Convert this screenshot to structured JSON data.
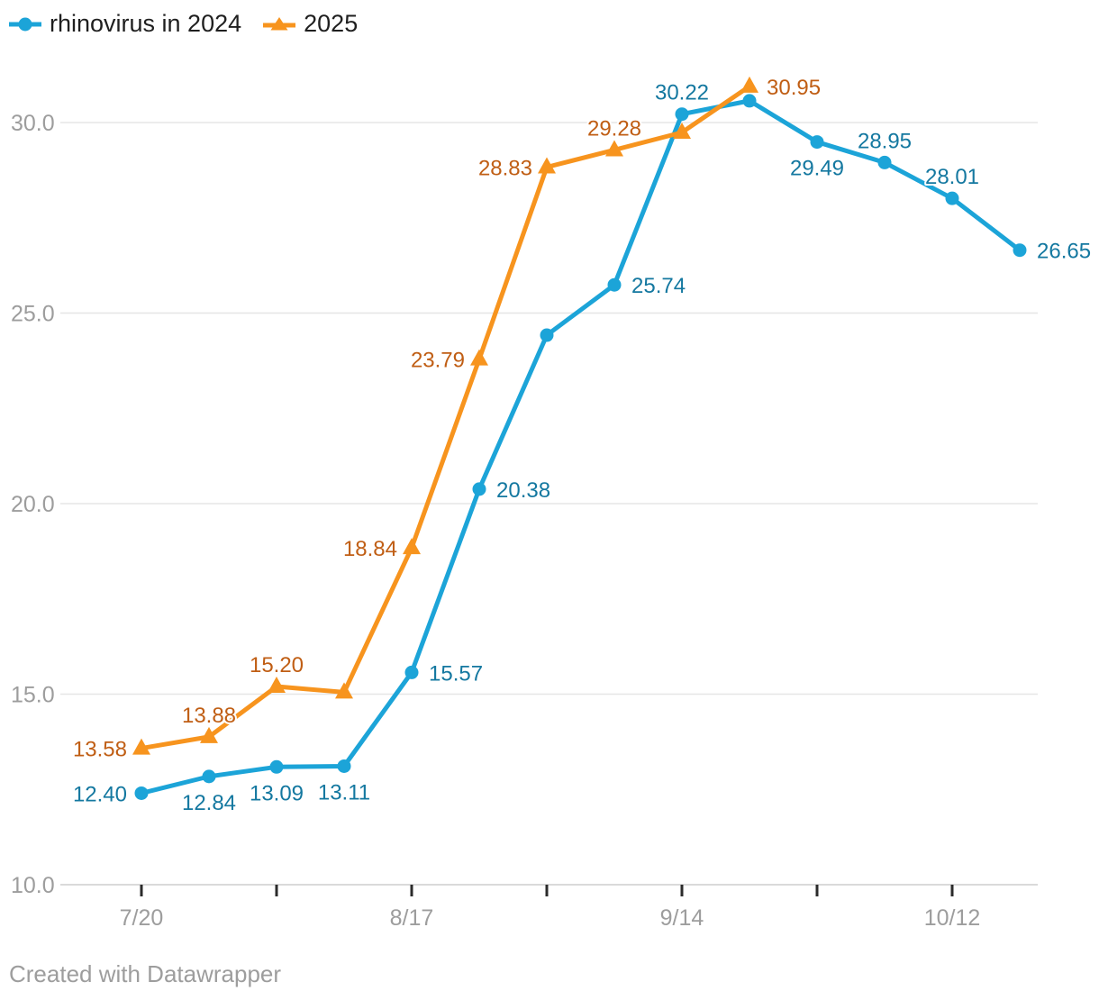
{
  "legend": {
    "items": [
      {
        "label": "rhinovirus in 2024",
        "marker": "circle"
      },
      {
        "label": "2025",
        "marker": "triangle"
      }
    ]
  },
  "footer": {
    "text": "Created with Datawrapper"
  },
  "colors": {
    "series_2024_line": "#1CA4D8",
    "series_2024_label": "#1478A0",
    "series_2025_line": "#F7941E",
    "series_2025_label": "#C05E14",
    "grid_line": "#E6E6E6",
    "axis_baseline": "#CDCDCD",
    "tick_mark": "#2B2B2B",
    "axis_label": "#9D9D9D",
    "legend_text": "#1F1F1F",
    "background": "#FFFFFF"
  },
  "chart_data": {
    "type": "line",
    "x": [
      "7/20",
      "7/27",
      "8/3",
      "8/10",
      "8/17",
      "8/24",
      "8/31",
      "9/7",
      "9/14",
      "9/21",
      "9/28",
      "10/5",
      "10/12",
      "10/19"
    ],
    "x_axis": {
      "tick_indices": [
        0,
        2,
        4,
        6,
        8,
        10,
        12
      ],
      "labeled_ticks": [
        {
          "index": 0,
          "label": "7/20"
        },
        {
          "index": 4,
          "label": "8/17"
        },
        {
          "index": 8,
          "label": "9/14"
        },
        {
          "index": 12,
          "label": "10/12"
        }
      ]
    },
    "y_axis": {
      "ticks": [
        {
          "value": 10,
          "label": "10.0"
        },
        {
          "value": 15,
          "label": "15.0"
        },
        {
          "value": 20,
          "label": "20.0"
        },
        {
          "value": 25,
          "label": "25.0"
        },
        {
          "value": 30,
          "label": "30.0"
        }
      ],
      "range": [
        10,
        31.6
      ],
      "grid": "on"
    },
    "series": [
      {
        "name": "rhinovirus in 2024",
        "marker": "circle",
        "values": [
          12.4,
          12.84,
          13.09,
          13.11,
          15.57,
          20.38,
          24.42,
          25.74,
          30.22,
          30.57,
          29.49,
          28.95,
          28.01,
          26.65
        ],
        "label_positions": [
          "left",
          "below",
          "below",
          "below",
          "right",
          "right",
          null,
          "right",
          "above",
          null,
          "below",
          "above",
          "above",
          "right"
        ]
      },
      {
        "name": "2025",
        "marker": "triangle",
        "values": [
          13.58,
          13.88,
          15.2,
          15.05,
          18.84,
          23.79,
          28.83,
          29.28,
          29.74,
          30.95
        ],
        "label_positions": [
          "left",
          "above",
          "above",
          null,
          "left",
          "left",
          "left",
          "above",
          null,
          "right"
        ]
      }
    ],
    "value_label_format": "0.00",
    "legend_position": "top-left"
  }
}
